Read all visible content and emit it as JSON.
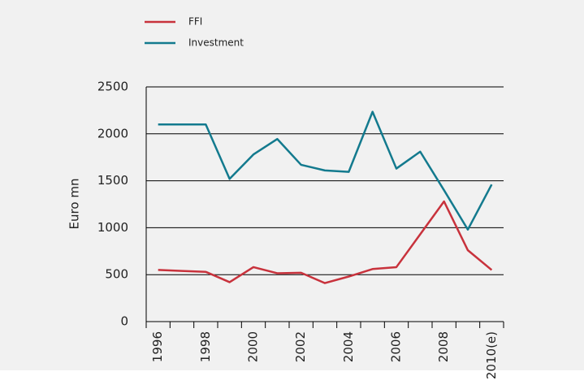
{
  "chart_data": {
    "type": "line",
    "categories": [
      "1996",
      null,
      "1998",
      null,
      "2000",
      null,
      "2002",
      null,
      "2004",
      null,
      "2006",
      null,
      "2008",
      null,
      "2010(e)"
    ],
    "series": [
      {
        "name": "FFI",
        "color": "#c8323c",
        "values": [
          550,
          540,
          530,
          420,
          580,
          515,
          520,
          410,
          480,
          560,
          580,
          930,
          1280,
          760,
          550
        ]
      },
      {
        "name": "Investment",
        "color": "#137a8e",
        "values": [
          2100,
          2100,
          2100,
          1520,
          1780,
          1945,
          1670,
          1610,
          1595,
          2235,
          1630,
          1810,
          1400,
          980,
          1460
        ]
      }
    ],
    "y_label": "Euro mn",
    "ylim": [
      0,
      2500
    ],
    "yticks": [
      0,
      500,
      1000,
      1500,
      2000,
      2500
    ],
    "grid": true,
    "legend": "top-left"
  }
}
